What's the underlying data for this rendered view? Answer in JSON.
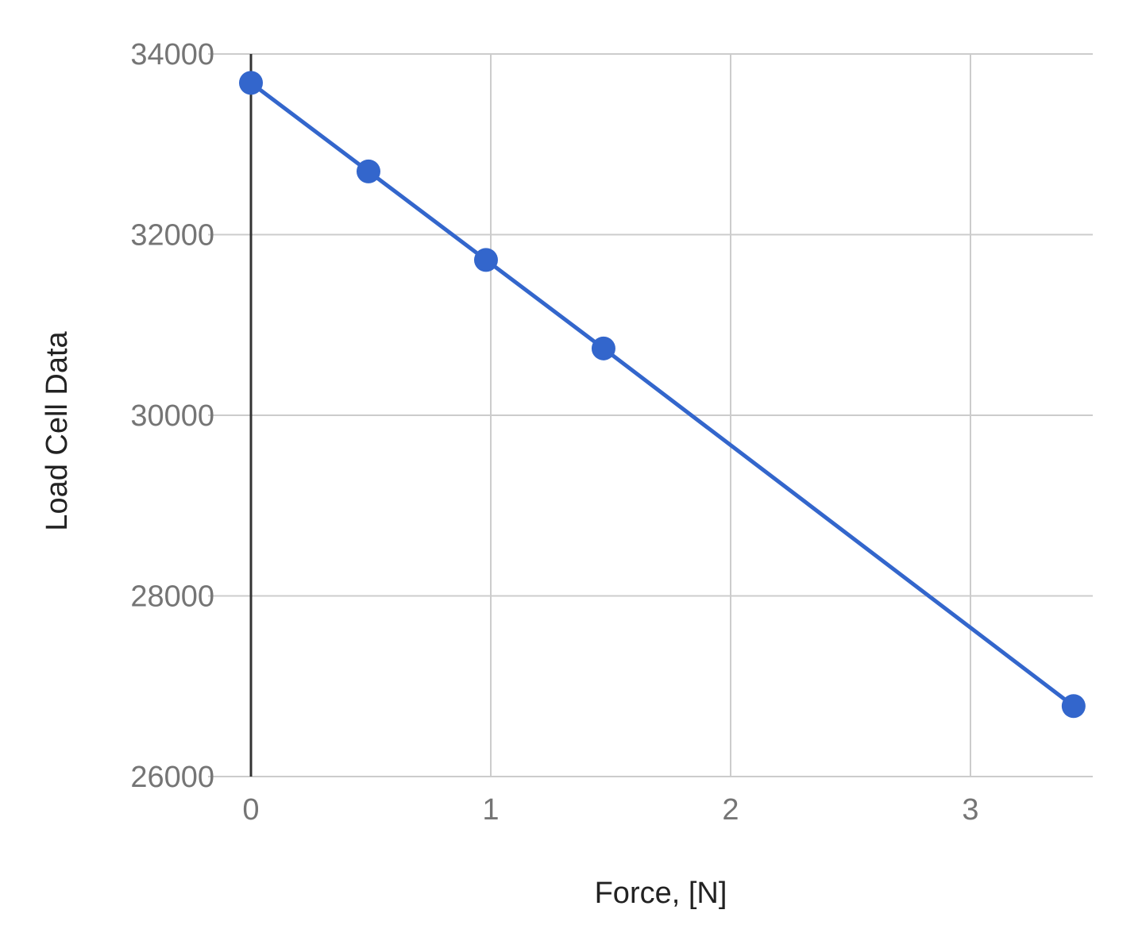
{
  "chart_data": {
    "type": "line",
    "title": "",
    "xlabel": "Force, [N]",
    "ylabel": "Load Cell Data",
    "xlim": [
      0,
      3.5
    ],
    "ylim": [
      26000,
      34000
    ],
    "x_ticks": [
      0,
      1,
      2,
      3
    ],
    "y_ticks": [
      26000,
      28000,
      30000,
      32000,
      34000
    ],
    "x_tick_labels": [
      "0",
      "1",
      "2",
      "3"
    ],
    "y_tick_labels": [
      "26000",
      "28000",
      "30000",
      "32000",
      "34000"
    ],
    "grid": true,
    "legend": "none",
    "series": [
      {
        "color": "#3366cc",
        "points": [
          {
            "x": 0,
            "y": 33680
          },
          {
            "x": 0.49,
            "y": 32700
          },
          {
            "x": 0.98,
            "y": 31720
          },
          {
            "x": 1.47,
            "y": 30740
          },
          {
            "x": 3.43,
            "y": 26780
          }
        ]
      }
    ]
  }
}
